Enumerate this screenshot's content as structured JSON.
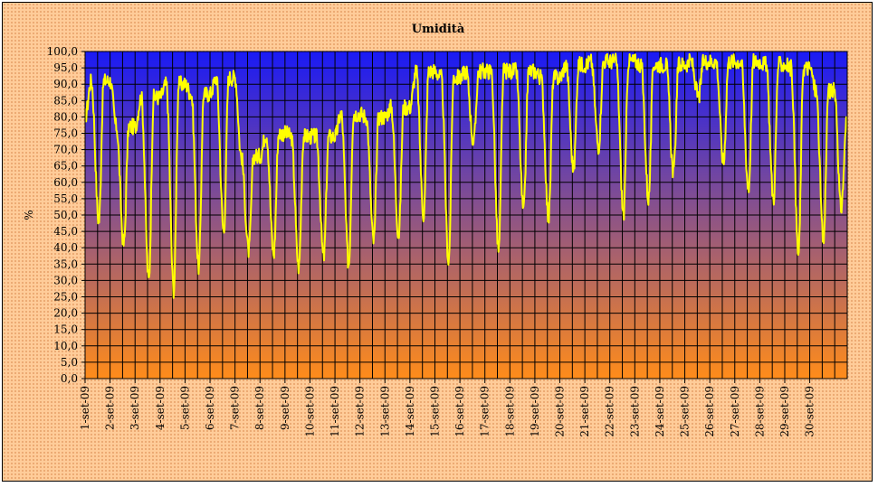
{
  "chart_data": {
    "type": "line",
    "title": "Umidità",
    "ylabel": "%",
    "xlabel": "",
    "ylim": [
      0,
      100
    ],
    "ytick_step": 5,
    "ytick_labels": [
      "0,0",
      "5,0",
      "10,0",
      "15,0",
      "20,0",
      "25,0",
      "30,0",
      "35,0",
      "40,0",
      "45,0",
      "50,0",
      "55,0",
      "60,0",
      "65,0",
      "70,0",
      "75,0",
      "80,0",
      "85,0",
      "90,0",
      "95,0",
      "100,0"
    ],
    "x_categories": [
      "1-set-09",
      "2-set-09",
      "3-set-09",
      "4-set-09",
      "5-set-09",
      "6-set-09",
      "7-set-09",
      "8-set-09",
      "9-set-09",
      "10-set-09",
      "11-set-09",
      "12-set-09",
      "13-set-09",
      "14-set-09",
      "15-set-09",
      "16-set-09",
      "17-set-09",
      "18-set-09",
      "19-set-09",
      "20-set-09",
      "21-set-09",
      "22-set-09",
      "23-set-09",
      "24-set-09",
      "25-set-09",
      "26-set-09",
      "27-set-09",
      "28-set-09",
      "29-set-09",
      "30-set-09"
    ],
    "grid": true,
    "legend": "none",
    "series": [
      {
        "line_color": "#ffff00",
        "daily_minima": [
          48,
          41,
          30,
          27,
          34,
          45,
          39,
          38,
          34,
          37,
          35,
          42,
          44,
          50,
          36,
          72,
          39,
          51,
          49,
          64,
          71,
          50,
          55,
          63,
          86,
          66,
          58,
          55,
          38,
          42
        ],
        "daily_maxima": [
          91,
          77,
          86,
          90,
          87,
          92,
          68,
          75,
          74,
          74,
          81,
          80,
          83,
          94,
          92,
          94,
          94,
          94,
          92,
          96,
          97,
          97,
          96,
          96,
          97,
          97,
          97,
          96,
          95,
          88
        ],
        "start_value": 80,
        "end_value": 80
      }
    ]
  },
  "colors": {
    "plot_top": "#1a1af5",
    "plot_bottom": "#ff8c1a",
    "frame_background": "#ffcc99",
    "line": "#ffff00"
  }
}
